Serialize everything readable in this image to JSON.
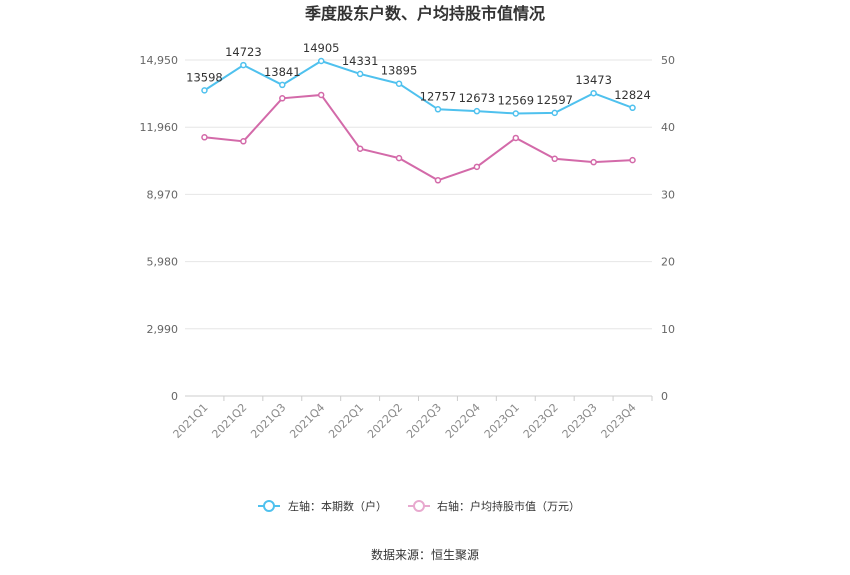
{
  "chart_data": {
    "type": "line",
    "title": "季度股东户数、户均持股市值情况",
    "categories": [
      "2021Q1",
      "2021Q2",
      "2021Q3",
      "2021Q4",
      "2022Q1",
      "2022Q2",
      "2022Q3",
      "2022Q4",
      "2023Q1",
      "2023Q2",
      "2023Q3",
      "2023Q4"
    ],
    "left_axis": {
      "min": 0,
      "max": 14950,
      "ticks": [
        "0",
        "2,990",
        "5,980",
        "8,970",
        "11,960",
        "14,950"
      ],
      "tick_values": [
        0,
        2990,
        5980,
        8970,
        11960,
        14950
      ]
    },
    "right_axis": {
      "min": 0,
      "max": 50,
      "ticks": [
        "0",
        "10",
        "20",
        "30",
        "40",
        "50"
      ],
      "tick_values": [
        0,
        10,
        20,
        30,
        40,
        50
      ]
    },
    "series": [
      {
        "name": "左轴：本期数（户）",
        "axis": "left",
        "color": "#4fc1ee",
        "values": [
          13598,
          14723,
          13841,
          14905,
          14331,
          13895,
          12757,
          12673,
          12569,
          12597,
          13473,
          12824
        ],
        "labels": [
          "13598",
          "14723",
          "13841",
          "14905",
          "14331",
          "13895",
          "12757",
          "12673",
          "12569",
          "12597",
          "13473",
          "12824"
        ]
      },
      {
        "name": "右轴：户均持股市值（万元）",
        "axis": "right",
        "color": "#d36aa9",
        "values": [
          38.5,
          37.9,
          44.3,
          44.8,
          36.8,
          35.4,
          32.1,
          34.1,
          38.4,
          35.3,
          34.8,
          35.1
        ]
      }
    ],
    "grid": true,
    "legend_position": "bottom-center"
  },
  "source": "数据来源：恒生聚源"
}
